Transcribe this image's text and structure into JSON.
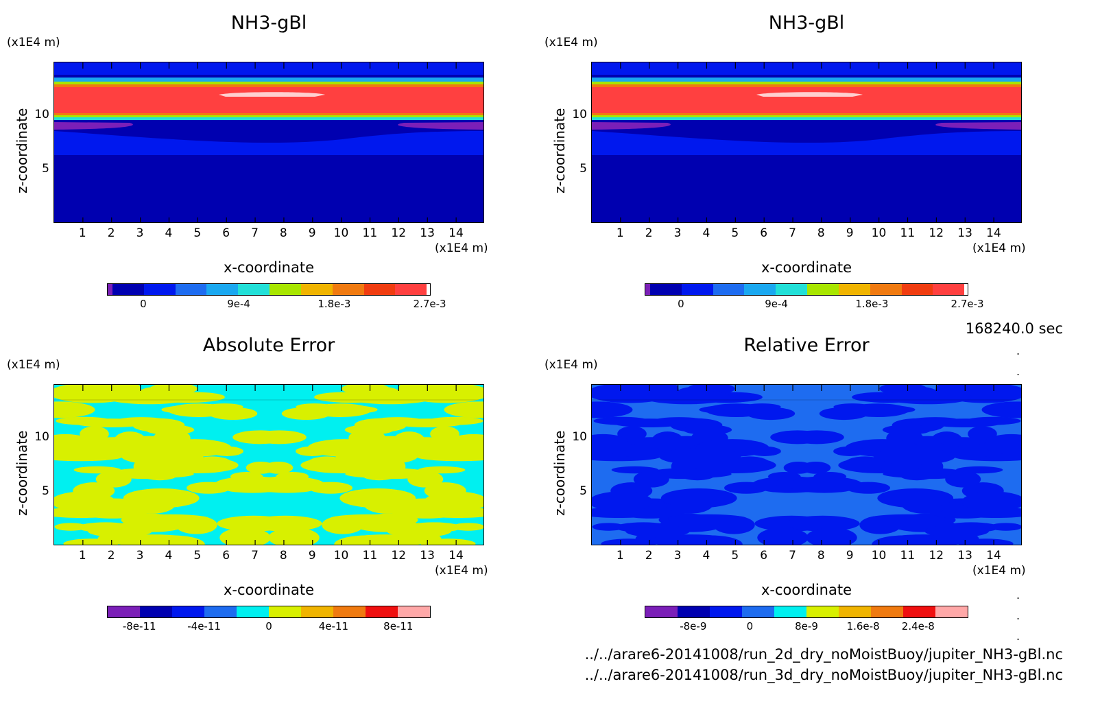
{
  "panels": [
    {
      "title": "NH3-gBl",
      "unit_label": "(x1E4 m)",
      "xlabel": "x-coordinate",
      "ylabel": "z-coordinate",
      "x_unit": "(x1E4 m)",
      "cbar_ticks": [
        "0",
        "9e-4",
        "1.8e-3",
        "2.7e-3"
      ],
      "cbar_colors": [
        "#7b1fb8",
        "#0000b0",
        "#0018ee",
        "#1e6cf0",
        "#1aa8f0",
        "#22e0d8",
        "#a8e600",
        "#f0b400",
        "#f07a10",
        "#f03c10",
        "#ff4040",
        "#ffffff"
      ]
    },
    {
      "title": "NH3-gBl",
      "unit_label": "(x1E4 m)",
      "xlabel": "x-coordinate",
      "ylabel": "z-coordinate",
      "x_unit": "(x1E4 m)",
      "cbar_ticks": [
        "0",
        "9e-4",
        "1.8e-3",
        "2.7e-3"
      ],
      "cbar_colors": [
        "#7b1fb8",
        "#0000b0",
        "#0018ee",
        "#1e6cf0",
        "#1aa8f0",
        "#22e0d8",
        "#a8e600",
        "#f0b400",
        "#f07a10",
        "#f03c10",
        "#ff4040",
        "#ffffff"
      ]
    },
    {
      "title": "Absolute Error",
      "unit_label": "(x1E4 m)",
      "xlabel": "x-coordinate",
      "ylabel": "z-coordinate",
      "x_unit": "(x1E4 m)",
      "cbar_ticks": [
        "-8e-11",
        "-4e-11",
        "0",
        "4e-11",
        "8e-11"
      ],
      "cbar_colors": [
        "#7b1fb8",
        "#0000b0",
        "#0018ee",
        "#1e6cf0",
        "#00f0f0",
        "#d8f000",
        "#f0b400",
        "#f07a10",
        "#f01010",
        "#ffa8a8"
      ]
    },
    {
      "title": "Relative Error",
      "unit_label": "(x1E4 m)",
      "xlabel": "x-coordinate",
      "ylabel": "z-coordinate",
      "x_unit": "(x1E4 m)",
      "cbar_ticks": [
        "-8e-9",
        "0",
        "8e-9",
        "1.6e-8",
        "2.4e-8"
      ],
      "cbar_colors": [
        "#7b1fb8",
        "#0000b0",
        "#0018ee",
        "#1e6cf0",
        "#00f0f0",
        "#d8f000",
        "#f0b400",
        "#f07a10",
        "#f01010",
        "#ffa8a8"
      ]
    }
  ],
  "time_label": "168240.0 sec",
  "file_paths": [
    "../../arare6-20141008/run_2d_dry_noMoistBuoy/jupiter_NH3-gBl.nc",
    "../../arare6-20141008/run_3d_dry_noMoistBuoy/jupiter_NH3-gBl.nc"
  ],
  "chart_data": [
    {
      "type": "heatmap",
      "title": "NH3-gBl",
      "xlabel": "x-coordinate",
      "ylabel": "z-coordinate",
      "x_ticks": [
        1,
        2,
        3,
        4,
        5,
        6,
        7,
        8,
        9,
        10,
        11,
        12,
        13,
        14
      ],
      "y_ticks": [
        5,
        10
      ],
      "xlim": [
        0,
        15
      ],
      "ylim": [
        0,
        15
      ],
      "colorbar_ticks": [
        0,
        0.0009,
        0.0018,
        0.0027
      ],
      "description_bands": [
        {
          "z": [
            9.8,
            12.8
          ],
          "value": 0.0027
        },
        {
          "z": [
            0,
            9.5
          ],
          "value": 0.0
        }
      ]
    },
    {
      "type": "heatmap",
      "title": "NH3-gBl",
      "xlabel": "x-coordinate",
      "ylabel": "z-coordinate",
      "x_ticks": [
        1,
        2,
        3,
        4,
        5,
        6,
        7,
        8,
        9,
        10,
        11,
        12,
        13,
        14
      ],
      "y_ticks": [
        5,
        10
      ],
      "xlim": [
        0,
        15
      ],
      "ylim": [
        0,
        15
      ],
      "colorbar_ticks": [
        0,
        0.0009,
        0.0018,
        0.0027
      ]
    },
    {
      "type": "heatmap",
      "title": "Absolute Error",
      "xlabel": "x-coordinate",
      "ylabel": "z-coordinate",
      "x_ticks": [
        1,
        2,
        3,
        4,
        5,
        6,
        7,
        8,
        9,
        10,
        11,
        12,
        13,
        14
      ],
      "y_ticks": [
        5,
        10
      ],
      "xlim": [
        0,
        15
      ],
      "ylim": [
        0,
        15
      ],
      "colorbar_ticks": [
        -8e-11,
        -4e-11,
        0,
        4e-11,
        8e-11
      ]
    },
    {
      "type": "heatmap",
      "title": "Relative Error",
      "xlabel": "x-coordinate",
      "ylabel": "z-coordinate",
      "x_ticks": [
        1,
        2,
        3,
        4,
        5,
        6,
        7,
        8,
        9,
        10,
        11,
        12,
        13,
        14
      ],
      "y_ticks": [
        5,
        10
      ],
      "xlim": [
        0,
        15
      ],
      "ylim": [
        0,
        15
      ],
      "colorbar_ticks": [
        -8e-09,
        0,
        8e-09,
        1.6e-08,
        2.4e-08
      ]
    }
  ]
}
